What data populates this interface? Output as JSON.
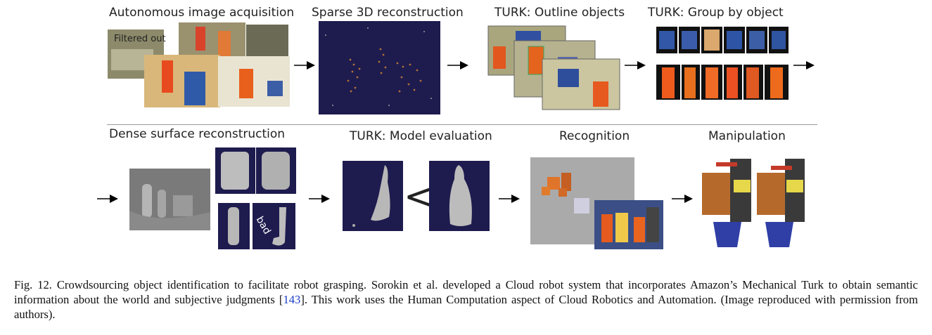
{
  "figure": {
    "stages_row1": [
      {
        "label": "Autonomous image acquisition"
      },
      {
        "label": "Sparse 3D reconstruction"
      },
      {
        "label": "TURK: Outline objects"
      },
      {
        "label": "TURK: Group by object"
      }
    ],
    "stages_row2": [
      {
        "label": "Dense surface reconstruction"
      },
      {
        "label": "TURK: Model evaluation"
      },
      {
        "label": "Recognition"
      },
      {
        "label": "Manipulation"
      }
    ],
    "filtered_out_text": "Filtered out",
    "bad_text": "bad",
    "less_than_symbol": "<",
    "colors": {
      "dark_panel": "#1e1b4e",
      "gray_panel": "#aaaaaa"
    }
  },
  "caption": {
    "prefix": "Fig. 12.  Crowdsourcing object identification to facilitate robot grasping. Sorokin et al. developed a Cloud robot system that incorporates Amazon’s Mechanical Turk to obtain semantic information about the world and subjective judgments [",
    "ref": "143",
    "suffix": "]. This work uses the Human Computation aspect of Cloud Robotics and Automation. (Image reproduced with permission from authors)."
  }
}
